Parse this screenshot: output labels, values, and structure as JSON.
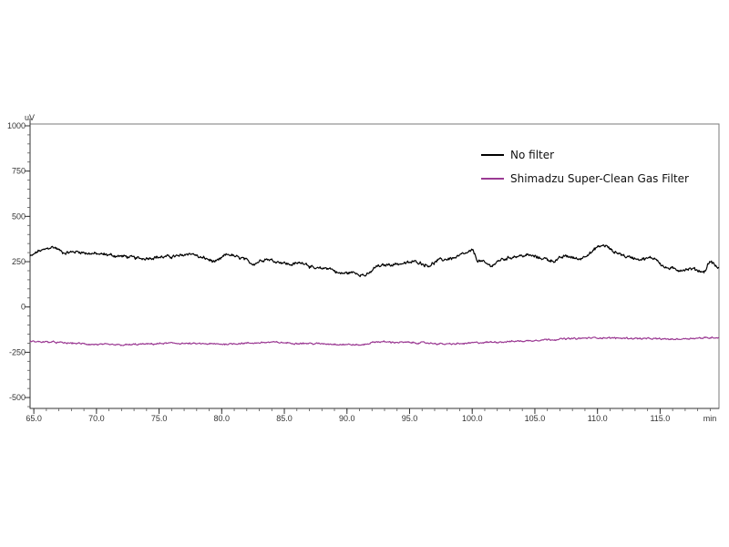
{
  "chart_data": {
    "type": "line",
    "ylabel": "uV",
    "xlabel": "min",
    "xlim": [
      64.7,
      119.7
    ],
    "ylim": [
      -560,
      1010
    ],
    "x_ticks": [
      {
        "value": 65.0,
        "label": "65.0"
      },
      {
        "value": 70.0,
        "label": "70.0"
      },
      {
        "value": 75.0,
        "label": "75.0"
      },
      {
        "value": 80.0,
        "label": "80.0"
      },
      {
        "value": 85.0,
        "label": "85.0"
      },
      {
        "value": 90.0,
        "label": "90.0"
      },
      {
        "value": 95.0,
        "label": "95.0"
      },
      {
        "value": 100.0,
        "label": "100.0"
      },
      {
        "value": 105.0,
        "label": "105.0"
      },
      {
        "value": 110.0,
        "label": "110.0"
      },
      {
        "value": 115.0,
        "label": "115.0"
      }
    ],
    "y_ticks": [
      {
        "value": 1000,
        "label": "1000"
      },
      {
        "value": 750,
        "label": "750"
      },
      {
        "value": 500,
        "label": "500"
      },
      {
        "value": 250,
        "label": "250"
      },
      {
        "value": 0,
        "label": "0"
      },
      {
        "value": -250,
        "label": "-250"
      },
      {
        "value": -500,
        "label": "-500"
      }
    ],
    "y_minor_step": 50,
    "x_minor_step": 1,
    "noise": 12,
    "series": [
      {
        "name": "No filter",
        "color": "#000000",
        "x": [
          64.7,
          65.5,
          66.5,
          67.5,
          68.5,
          69.5,
          70.5,
          72.0,
          73.5,
          75.0,
          76.5,
          77.5,
          78.5,
          79.5,
          80.5,
          81.5,
          82.5,
          83.5,
          84.5,
          85.5,
          86.5,
          87.5,
          88.5,
          89.5,
          90.5,
          91.5,
          92.5,
          93.5,
          94.5,
          95.5,
          96.5,
          97.5,
          98.5,
          99.5,
          100.0,
          100.5,
          101.5,
          102.5,
          103.5,
          104.5,
          105.5,
          106.5,
          107.5,
          108.5,
          109.5,
          110.0,
          110.5,
          111.5,
          112.5,
          113.5,
          114.5,
          115.5,
          116.5,
          117.5,
          118.5,
          119.0,
          119.7
        ],
        "values": [
          280,
          310,
          330,
          300,
          305,
          295,
          290,
          280,
          268,
          275,
          280,
          295,
          270,
          250,
          290,
          270,
          240,
          265,
          250,
          235,
          245,
          210,
          215,
          185,
          190,
          175,
          225,
          235,
          240,
          250,
          230,
          260,
          270,
          295,
          310,
          255,
          230,
          265,
          280,
          285,
          270,
          255,
          280,
          265,
          300,
          330,
          340,
          300,
          275,
          265,
          270,
          215,
          205,
          210,
          195,
          250,
          215
        ]
      },
      {
        "name": "Shimadzu Super-Clean Gas Filter",
        "color": "#9b3a93",
        "x": [
          64.7,
          66.0,
          68.0,
          70.0,
          72.0,
          74.0,
          76.0,
          78.0,
          80.0,
          82.0,
          84.0,
          86.0,
          88.0,
          90.0,
          91.0,
          92.5,
          94.0,
          96.0,
          98.0,
          99.0,
          100.5,
          102.0,
          104.0,
          106.0,
          108.0,
          110.0,
          112.0,
          114.0,
          116.0,
          118.0,
          119.7
        ],
        "values": [
          -190,
          -193,
          -200,
          -207,
          -210,
          -205,
          -200,
          -203,
          -205,
          -200,
          -195,
          -200,
          -203,
          -207,
          -210,
          -192,
          -195,
          -198,
          -205,
          -203,
          -197,
          -193,
          -188,
          -180,
          -175,
          -170,
          -172,
          -175,
          -178,
          -172,
          -168
        ]
      }
    ]
  },
  "legend": {
    "items": [
      {
        "label": "No filter",
        "color": "#000000"
      },
      {
        "label": "Shimadzu Super-Clean Gas Filter",
        "color": "#9b3a93"
      }
    ]
  }
}
